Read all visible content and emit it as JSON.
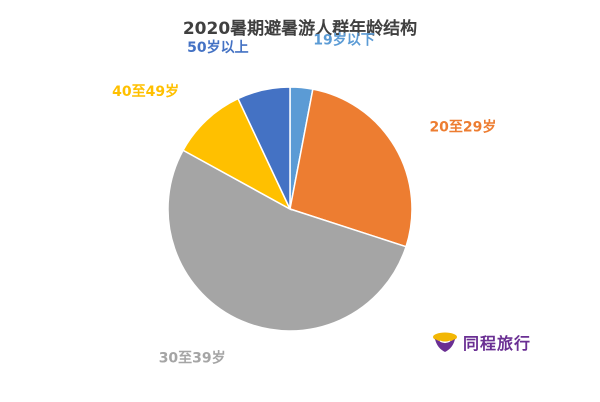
{
  "chart_data": {
    "type": "pie",
    "title": "2020暑期避暑游人群年龄结构",
    "slices": [
      {
        "label": "19岁以下",
        "value": 3,
        "color": "#5b9bd5"
      },
      {
        "label": "20至29岁",
        "value": 27,
        "color": "#ed7d31"
      },
      {
        "label": "30至39岁",
        "value": 53,
        "color": "#a5a5a5"
      },
      {
        "label": "40至49岁",
        "value": 10,
        "color": "#ffc000"
      },
      {
        "label": "50岁以上",
        "value": 7,
        "color": "#4472c4"
      }
    ],
    "start_angle_deg": 0,
    "direction": "clockwise",
    "legend": "none",
    "label_position": "outside"
  },
  "brand": {
    "text": "同程旅行",
    "icon": "tongcheng-logo-icon",
    "color": "#6a2f93"
  }
}
